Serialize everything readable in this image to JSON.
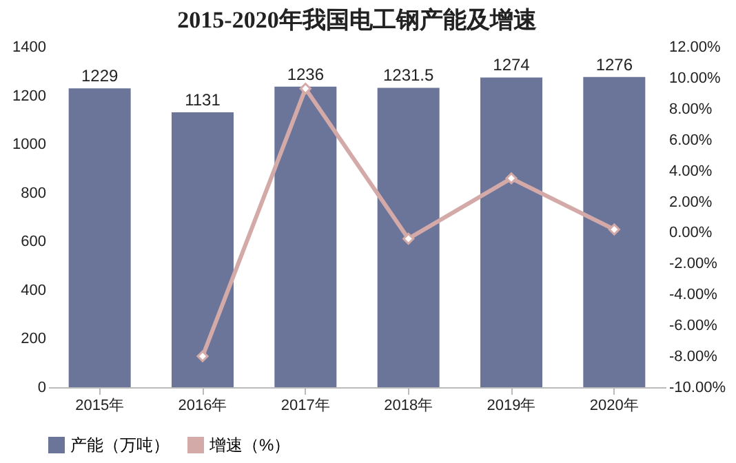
{
  "chart_data": {
    "type": "bar",
    "title": "2015-2020年我国电工钢产能及增速",
    "categories": [
      "2015年",
      "2016年",
      "2017年",
      "2018年",
      "2019年",
      "2020年"
    ],
    "series": [
      {
        "name": "产能（万吨）",
        "color": "#6b7499",
        "values": [
          1229,
          1131,
          1236,
          1231.5,
          1274,
          1276
        ],
        "value_labels": [
          "1229",
          "1131",
          "1236",
          "1231.5",
          "1274",
          "1276"
        ]
      },
      {
        "name": "增速（%）",
        "type": "line",
        "axis": "y2",
        "color": "#d4aaa8",
        "values": [
          null,
          -8.0,
          9.3,
          -0.4,
          3.5,
          0.2
        ]
      }
    ],
    "ylim": [
      0,
      1400
    ],
    "yticks": [
      0,
      200,
      400,
      600,
      800,
      1000,
      1200,
      1400
    ],
    "y2lim": [
      -10,
      12
    ],
    "y2ticks": [
      {
        "value": -10,
        "label": "-10.00%"
      },
      {
        "value": -8,
        "label": "-8.00%"
      },
      {
        "value": -6,
        "label": "-6.00%"
      },
      {
        "value": -4,
        "label": "-4.00%"
      },
      {
        "value": -2,
        "label": "-2.00%"
      },
      {
        "value": 0,
        "label": "0.00%"
      },
      {
        "value": 2,
        "label": "2.00%"
      },
      {
        "value": 4,
        "label": "4.00%"
      },
      {
        "value": 6,
        "label": "6.00%"
      },
      {
        "value": 8,
        "label": "8.00%"
      },
      {
        "value": 10,
        "label": "10.00%"
      },
      {
        "value": 12,
        "label": "12.00%"
      }
    ],
    "marker": "diamond",
    "legend": "bottom",
    "grid": false
  }
}
